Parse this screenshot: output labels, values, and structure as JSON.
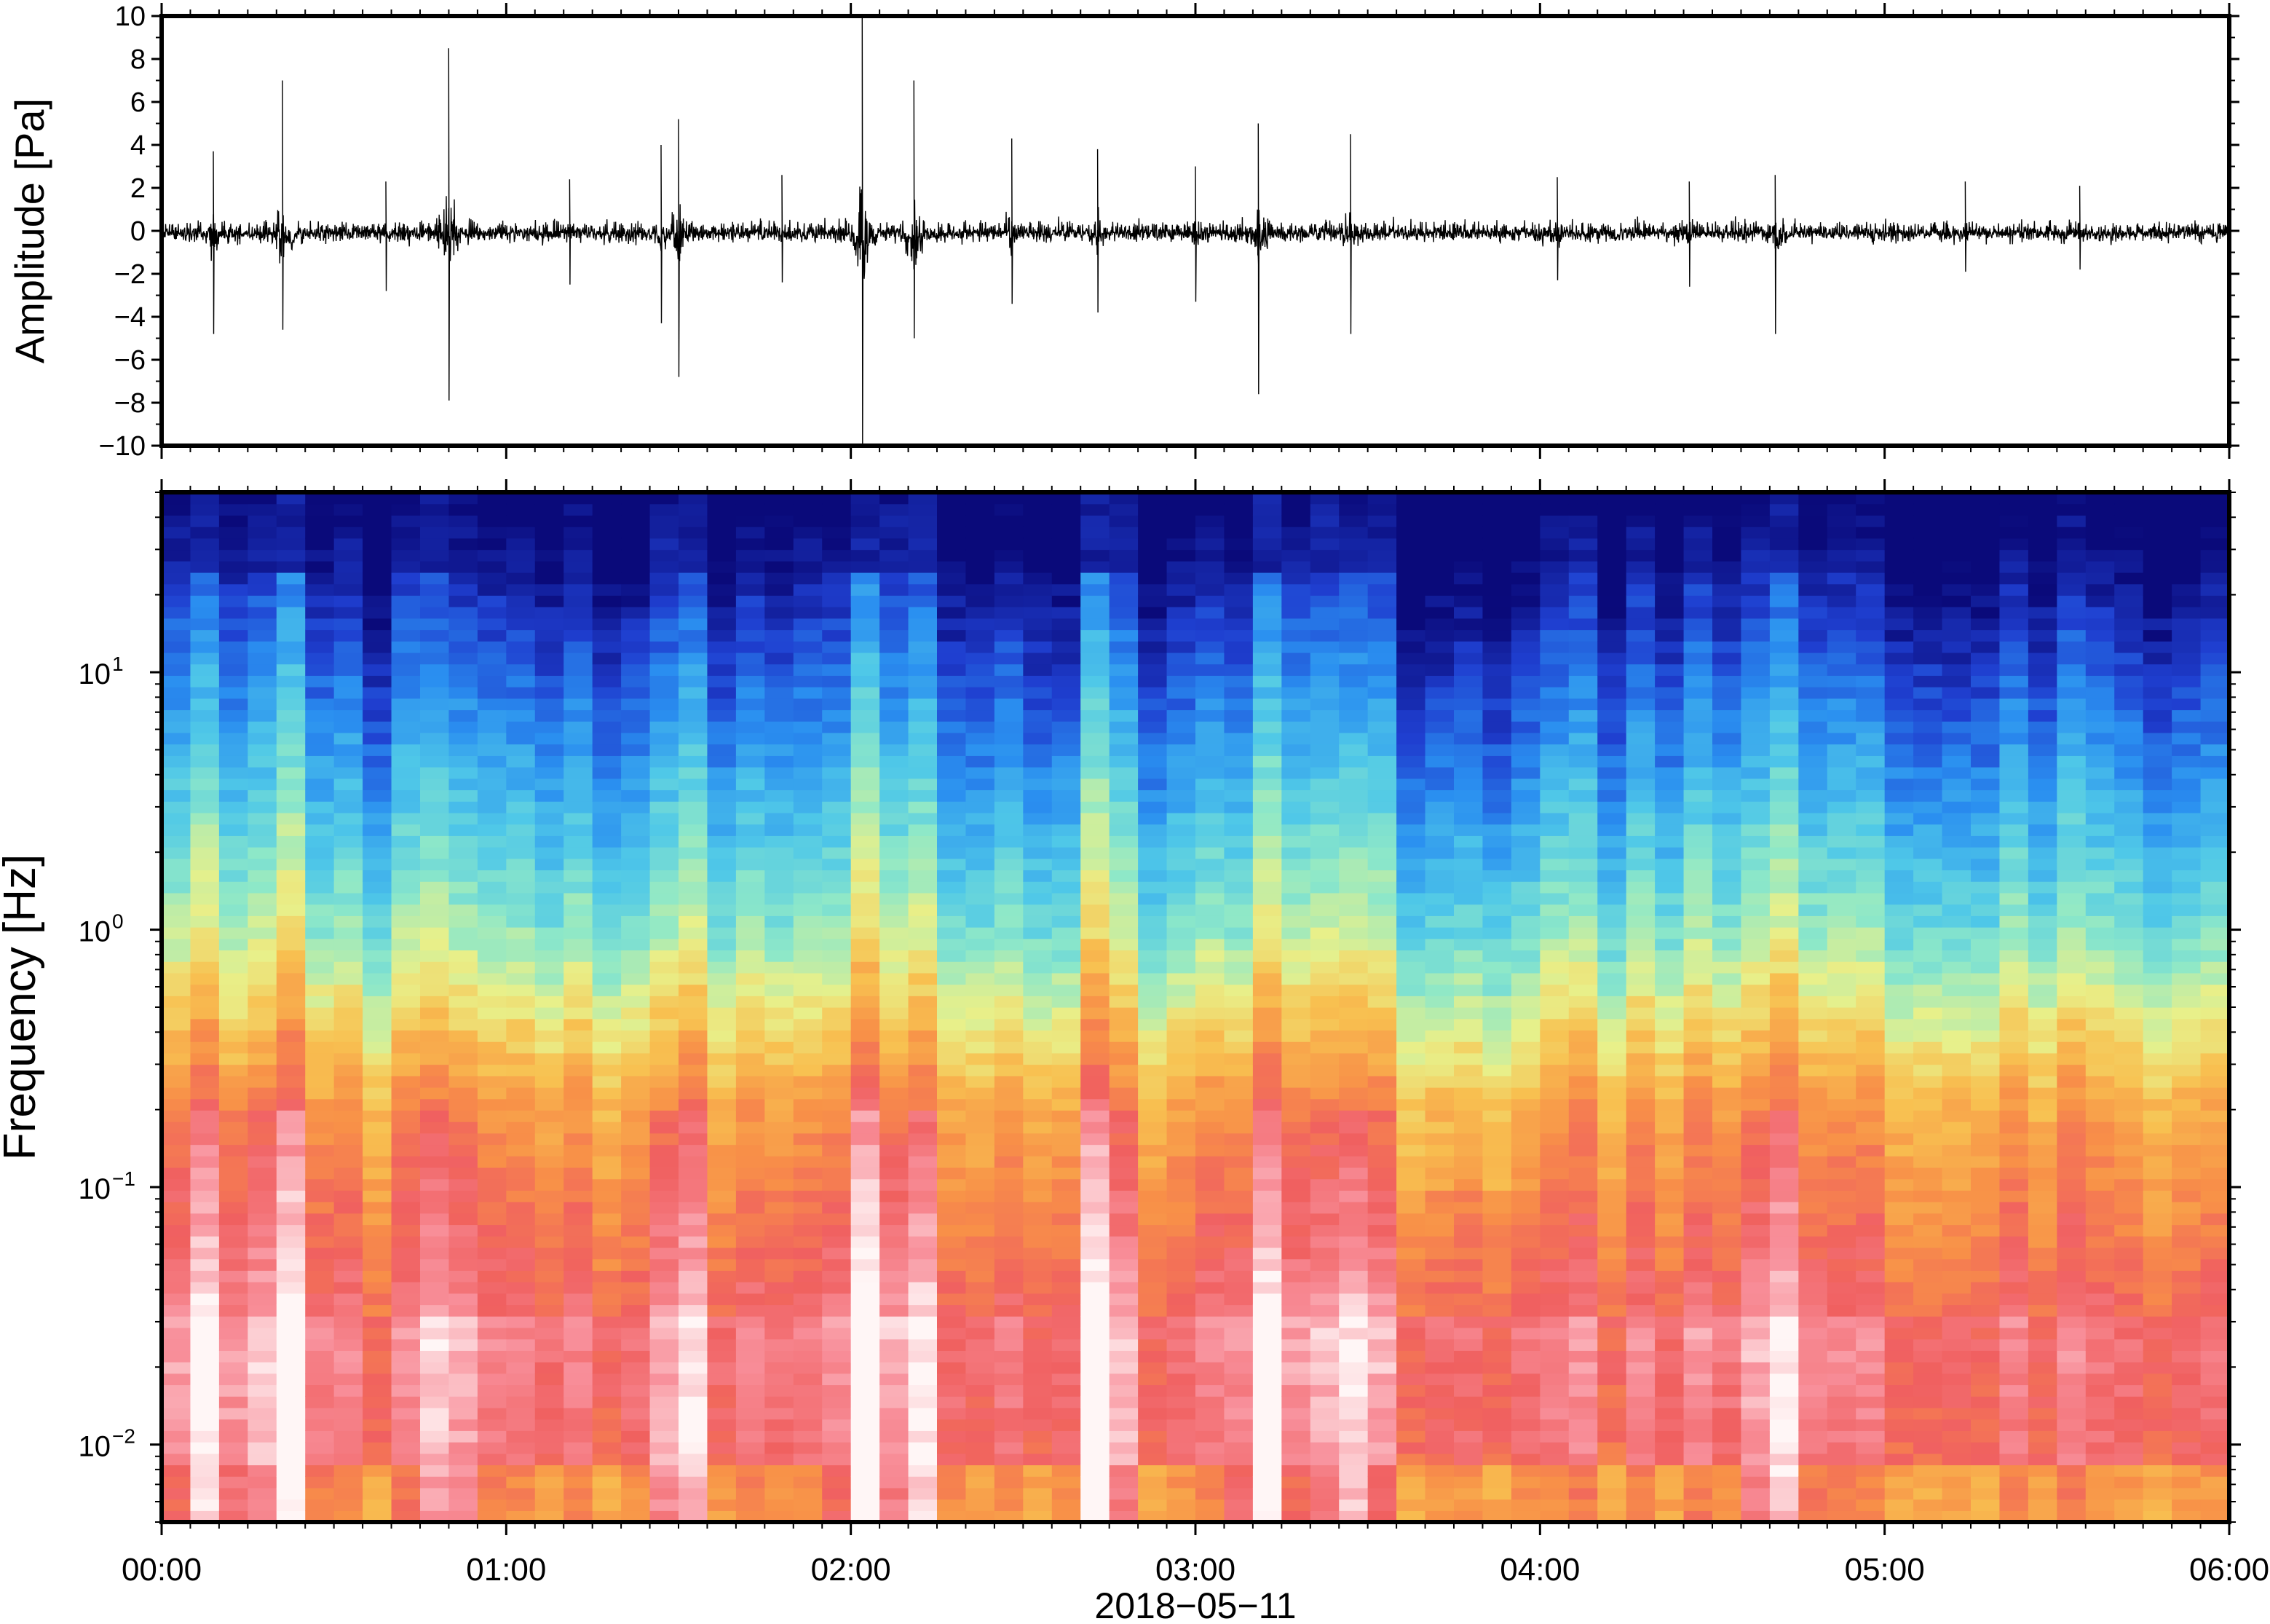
{
  "chart_data": [
    {
      "type": "line",
      "panel": "waveform",
      "ylabel": "Amplitude [Pa]",
      "ylim": [
        -10,
        10
      ],
      "yticks": [
        -10,
        -8,
        -6,
        -4,
        -2,
        0,
        2,
        4,
        6,
        8,
        10
      ],
      "ytick_labels": [
        "−10",
        "−8",
        "−6",
        "−4",
        "−2",
        "0",
        "2",
        "4",
        "6",
        "8",
        "10"
      ],
      "xlim": [
        "00:00",
        "06:00"
      ],
      "grid": false,
      "line_color": "#000000",
      "bursts": [
        {
          "t": "00:09",
          "max": 3.7,
          "min": -4.8
        },
        {
          "t": "00:21",
          "max": 7.0,
          "min": -4.6
        },
        {
          "t": "00:39",
          "max": 2.3,
          "min": -2.8
        },
        {
          "t": "00:50",
          "max": 8.5,
          "min": -7.9
        },
        {
          "t": "01:11",
          "max": 2.4,
          "min": -2.5
        },
        {
          "t": "01:27",
          "max": 4.0,
          "min": -4.3
        },
        {
          "t": "01:30",
          "max": 5.2,
          "min": -6.8
        },
        {
          "t": "01:48",
          "max": 2.6,
          "min": -2.4
        },
        {
          "t": "02:02",
          "max": 10.0,
          "min": -10.0
        },
        {
          "t": "02:11",
          "max": 7.0,
          "min": -5.0
        },
        {
          "t": "02:28",
          "max": 4.3,
          "min": -3.4
        },
        {
          "t": "02:43",
          "max": 3.8,
          "min": -3.8
        },
        {
          "t": "03:00",
          "max": 3.0,
          "min": -3.3
        },
        {
          "t": "03:11",
          "max": 5.0,
          "min": -7.6
        },
        {
          "t": "03:27",
          "max": 4.5,
          "min": -4.8
        },
        {
          "t": "04:03",
          "max": 2.5,
          "min": -2.3
        },
        {
          "t": "04:26",
          "max": 2.3,
          "min": -2.6
        },
        {
          "t": "04:41",
          "max": 2.6,
          "min": -4.8
        },
        {
          "t": "05:14",
          "max": 2.3,
          "min": -1.9
        },
        {
          "t": "05:34",
          "max": 2.1,
          "min": -1.8
        }
      ]
    },
    {
      "type": "heatmap",
      "panel": "spectrogram",
      "ylabel": "Frequency [Hz]",
      "yscale": "log",
      "ylim": [
        0.005,
        50
      ],
      "ytick_labels": [
        {
          "base": "10",
          "exp": "−2",
          "value": 0.01
        },
        {
          "base": "10",
          "exp": "−1",
          "value": 0.1
        },
        {
          "base": "10",
          "exp": "0",
          "value": 1
        },
        {
          "base": "10",
          "exp": "1",
          "value": 10
        }
      ],
      "xlim": [
        "00:00",
        "06:00"
      ],
      "colormap": [
        "#0a0a7a",
        "#1f3fd0",
        "#2a8ff0",
        "#4fc8e8",
        "#8ee8c8",
        "#e8f08a",
        "#f8c050",
        "#f89048",
        "#f06060",
        "#f88f9a",
        "#fff6f6"
      ],
      "active_periods": [
        "00:09",
        "00:21",
        "00:50",
        "01:30",
        "02:02",
        "02:11",
        "02:43",
        "03:11",
        "03:27",
        "04:41"
      ],
      "quiet_period": "03:36-04:00"
    }
  ],
  "xaxis": {
    "tick_labels": [
      "00:00",
      "01:00",
      "02:00",
      "03:00",
      "04:00",
      "05:00",
      "06:00"
    ],
    "date_label": "2018−05−11"
  }
}
